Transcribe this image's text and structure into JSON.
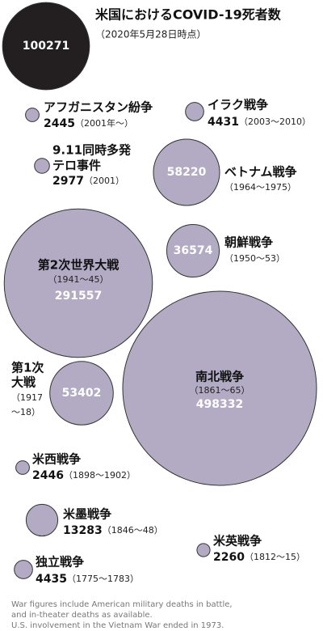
{
  "chart_data": {
    "type": "bubble",
    "title": "米国におけるCOVID-19死者数",
    "subtitle": "（2020年5月28日時点）",
    "items": [
      {
        "value": 100271,
        "color": "#231f20"
      },
      {
        "name": [
          "アフガニスタン紛争"
        ],
        "value": 2445,
        "period": [
          "（2001年～）"
        ],
        "color": "#b3abc4"
      },
      {
        "name": [
          "イラク戦争"
        ],
        "value": 4431,
        "period": [
          "（2003～2010）"
        ],
        "color": "#b3abc4"
      },
      {
        "name": [
          "9.11同時多発",
          "テロ事件"
        ],
        "value": 2977,
        "period": [
          "（2001）"
        ],
        "color": "#b3abc4"
      },
      {
        "name": [
          "ベトナム戦争"
        ],
        "value": 58220,
        "period": [
          "（1964～1975）"
        ],
        "color": "#b3abc4"
      },
      {
        "name": [
          "朝鮮戦争"
        ],
        "value": 36574,
        "period": [
          "（1950～53）"
        ],
        "color": "#b3abc4"
      },
      {
        "name": [
          "第2次世界大戦"
        ],
        "value": 291557,
        "period": [
          "（1941～45）"
        ],
        "color": "#b3abc4"
      },
      {
        "name": [
          "南北戦争"
        ],
        "value": 498332,
        "period": [
          "（1861～65）"
        ],
        "color": "#b3abc4"
      },
      {
        "name": [
          "第1次",
          "大戦"
        ],
        "value": 53402,
        "period": [
          "（1917",
          "～18）"
        ],
        "color": "#b3abc4"
      },
      {
        "name": [
          "米西戦争"
        ],
        "value": 2446,
        "period": [
          "（1898～1902）"
        ],
        "color": "#b3abc4"
      },
      {
        "name": [
          "米墨戦争"
        ],
        "value": 13283,
        "period": [
          "（1846～48）"
        ],
        "color": "#b3abc4"
      },
      {
        "name": [
          "米英戦争"
        ],
        "value": 2260,
        "period": [
          "（1812～15）"
        ],
        "color": "#b3abc4"
      },
      {
        "name": [
          "独立戦争"
        ],
        "value": 4435,
        "period": [
          "（1775～1783）"
        ],
        "color": "#b3abc4"
      }
    ],
    "notes": [
      "War figures include American military deaths in battle,",
      "and in-theater deaths as available.",
      "U.S. involvement in the Vietnam War ended in 1973."
    ]
  }
}
